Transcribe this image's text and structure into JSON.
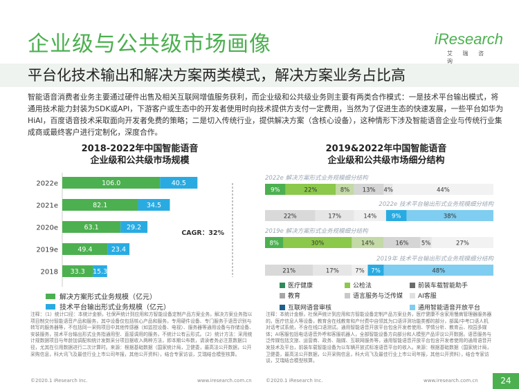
{
  "page": {
    "title": "企业级与公共级市场画像",
    "logo_text": "iResearch",
    "logo_sub": "艾 瑞 咨 询",
    "subtitle": "平台化技术输出和解决方案两类模式，解决方案业务占比高",
    "intro": "智能语音消费者业务主要通过硬件出售及相关互联网增值服务获利，而企业级和公共级业务则主要有两类合作模式：一是技术平台输出模式，将通用技术能力封装为SDK或API，下游客户或生态中的开发者使用时向技术提供方支付一定费用，当然为了促进生态的快速发展，一些平台如华为HiAI，百度语音技术采取面向开发者免费的策略；二是切入传统行业，提供解决方案（含核心设备），这种情形下涉及智能语音企业与传统行业集成商或最终客户进行定制化，深度合作。",
    "note_left": "注释：（1）统计口径：本统计金额，社保声统计到应用和方智能设备定制产品方案业务。解决方案业务指以项目制交付智能语音产品和服务，其中设备仅包括核心产品和服务。专用硬件设备、专门服务于语音识别与转写的服务器等，不包括同一采购项目中其他传感器（如监控设备、电视）、服务器等通用设备与存储设备、安装服务，技术平台输出形式业务指通用型、直接调用的服务，不统计公有云形式。（2）统计方法：采用统计规数据项目与年龄加调配和统计发数采分项目据收入两种方法，即本期公布数，请读者务必注意数据口径，尤其在引用数据进行二次计算时。来源：根据基础数据（国家统计局，卫健委，最高法公开数据，公开采购信息，科大讯飞及最佳行业上市公司年报，其他公开资料），结合专家访谈，艾瑞结合模型核算。",
    "note_right": "注释：本统计金额，社保声统计到应用和方智能设备定制产品方案业务，医疗健康不含家用慢病管理器服务器的。医疗信息人等设备，教育含在线教育和产付费中自领其为口语评测功能类都的部分，部属/中考口语人机对话考试系统，不含在线口语测试。通用智能语音开放平台包含开发者使用、学情分析、教育云、校园多媒体；AI客服包括电话语音外呼和客服机器人，全部智能设备方向部分和人模型产品评议公开数据。语音服务与泛传媒包括文旅、运营商、政务、融媒、互联网服务等，通用智能语音开放平台包含开发者使用的通用语音开发技术及平台，前装车载智能设备为以车辆开放式标准语音平台的收入。来源：根据基础数据（国家统计局，卫健委，最高法公开数据，公开采购信息，科大讯飞及最佳行业上市公司年报，其他公开资料），结合专家访谈，艾瑞结合模型核算。",
    "footer_left_1": "©2020.1 iResearch Inc.",
    "footer_right_1": "www.iresearch.com.cn",
    "footer_left_2": "©2020.1 iResearch Inc.",
    "footer_right_2": "www.iresearch.com.cn",
    "page_number": "24"
  },
  "chart_data": [
    {
      "type": "bar",
      "orientation": "horizontal",
      "stacked": true,
      "title_line1": "2018-2022年中国智能语音",
      "title_line2": "企业级和公共级市场规模",
      "categories": [
        "2022e",
        "2021e",
        "2020e",
        "2019e",
        "2018"
      ],
      "series": [
        {
          "name": "解决方案形式业务规模（亿元）",
          "values": [
            106.0,
            82.1,
            63.1,
            49.4,
            33.3
          ],
          "labels": [
            "106.0",
            "82.1",
            "63.1",
            "49.4",
            "33.3"
          ],
          "color": "#4cb050"
        },
        {
          "name": "技术平台输出形式业务规模（亿元）",
          "values": [
            40.5,
            34.5,
            29.2,
            23.4,
            15.3
          ],
          "labels": [
            "40.5",
            "34.5",
            "29.2",
            "23.4",
            "15.3"
          ],
          "color": "#29abe2"
        }
      ],
      "annotation": "CAGR：32%"
    },
    {
      "type": "bar",
      "orientation": "horizontal",
      "stacked": true,
      "percent": true,
      "title_line1": "2019&2022年中国智能语音",
      "title_line2": "企业级和公共级市场细分结构",
      "rows": [
        {
          "label": "2022e 解决方案形式业务规模细分结构",
          "segments": [
            9,
            22,
            8,
            13,
            4,
            44
          ],
          "seg_labels": [
            "9%",
            "22%",
            "8%",
            "13%",
            "4%",
            "44%"
          ]
        },
        {
          "label": "2022e 技术平台输出形式业务规模细分结构",
          "segments": [
            22,
            17,
            14,
            9,
            38
          ],
          "seg_labels": [
            "22%",
            "17%",
            "14%",
            "9%",
            "38%"
          ]
        },
        {
          "label": "2019e 解决方案形式业务规模细分结构",
          "segments": [
            8,
            30,
            14,
            16,
            5,
            27
          ],
          "seg_labels": [
            "8%",
            "30%",
            "14%",
            "16%",
            "5%",
            "27%"
          ]
        },
        {
          "label": "2019年 技术平台输出形式业务规模细分结构",
          "segments": [
            21,
            17,
            7,
            7,
            48
          ],
          "seg_labels": [
            "21%",
            "17%",
            "7%",
            "7%",
            "48%"
          ]
        }
      ],
      "solution_colors": [
        "#4cb050",
        "#8cc84b",
        "#c3d9a6",
        "#d5d5d5",
        "#e6e6e6",
        "#f2f2f2"
      ],
      "platform_colors": [
        "#d9d9d9",
        "#e6e6e6",
        "#f0f0f0",
        "#29abe2",
        "#7fcdf0"
      ],
      "legend": [
        {
          "name": "医疗健康",
          "color": "#2e8b57"
        },
        {
          "name": "公检法",
          "color": "#8cc84b"
        },
        {
          "name": "前装车载智能助手",
          "color": "#6b6b6b"
        },
        {
          "name": "教育",
          "color": "#a6a6a6"
        },
        {
          "name": "语言服务与泛传媒",
          "color": "#c8c8c8"
        },
        {
          "name": "AI客服",
          "color": "#e0e0e0"
        },
        {
          "name": "互联网语音审核",
          "color": "#1f5f8b"
        },
        {
          "name": "通用智能语音开放平台",
          "color": "#7fcdf0"
        }
      ]
    }
  ]
}
